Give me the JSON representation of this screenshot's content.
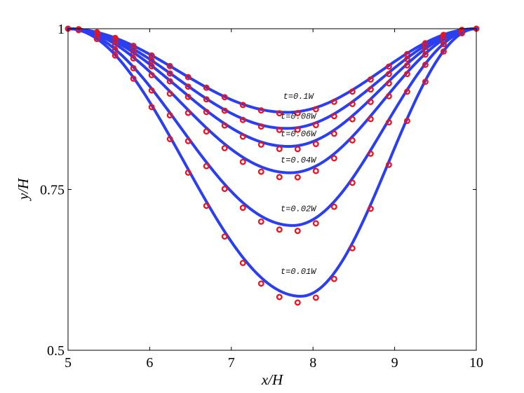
{
  "chart_data": {
    "type": "line",
    "title": "",
    "xlabel": "x/H",
    "ylabel": "y/H",
    "xlim": [
      5,
      10
    ],
    "ylim": [
      0.5,
      1
    ],
    "xticks": [
      "5",
      "6",
      "7",
      "8",
      "9",
      "10"
    ],
    "yticks": [
      "0.5",
      "0.75",
      "1"
    ],
    "grid": false,
    "colors": {
      "line": "#2b3ff0",
      "marker": "#e8141e"
    },
    "series": [
      {
        "name": "t=0.1W",
        "label": "t=0.1W",
        "min_x": 7.68,
        "min_y": 0.87,
        "ref_min_x": 7.7,
        "ref_min_y": 0.868,
        "label_at": [
          7.82,
          0.891
        ]
      },
      {
        "name": "t=0.08W",
        "label": "t=0.08W",
        "min_x": 7.68,
        "min_y": 0.845,
        "ref_min_x": 7.7,
        "ref_min_y": 0.842,
        "label_at": [
          7.82,
          0.86
        ]
      },
      {
        "name": "t=0.06W",
        "label": "t=0.06W",
        "min_x": 7.7,
        "min_y": 0.817,
        "ref_min_x": 7.72,
        "ref_min_y": 0.812,
        "label_at": [
          7.82,
          0.833
        ]
      },
      {
        "name": "t=0.04W",
        "label": "t=0.04W",
        "min_x": 7.72,
        "min_y": 0.776,
        "ref_min_x": 7.72,
        "ref_min_y": 0.768,
        "label_at": [
          7.82,
          0.792
        ]
      },
      {
        "name": "t=0.02W",
        "label": "t=0.02W",
        "min_x": 7.75,
        "min_y": 0.694,
        "ref_min_x": 7.75,
        "ref_min_y": 0.685,
        "label_at": [
          7.82,
          0.716
        ]
      },
      {
        "name": "t=0.01W",
        "label": "t=0.01W",
        "min_x": 7.85,
        "min_y": 0.584,
        "ref_min_x": 7.85,
        "ref_min_y": 0.574,
        "label_at": [
          7.82,
          0.619
        ]
      }
    ]
  }
}
